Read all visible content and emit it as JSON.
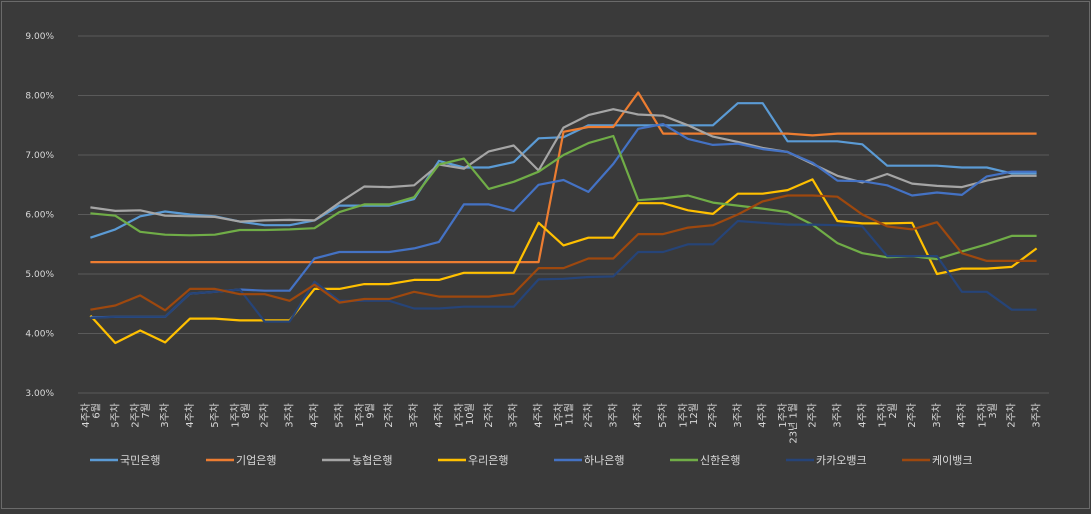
{
  "chart_data": {
    "type": "line",
    "title": "",
    "xlabel": "",
    "ylabel": "",
    "ylim": [
      3.0,
      9.0
    ],
    "y_ticks": [
      "3.00%",
      "4.00%",
      "5.00%",
      "6.00%",
      "7.00%",
      "8.00%",
      "9.00%"
    ],
    "grid": true,
    "legend_position": "bottom",
    "x": [
      "6월 4주차",
      "5주차",
      "7월 2주차",
      "3주차",
      "4주차",
      "5주차",
      "8월 1주차",
      "2주차",
      "3주차",
      "4주차",
      "5주차",
      "9월 1주차",
      "2주차",
      "3주차",
      "4주차",
      "10월 1주차",
      "2주차",
      "3주차",
      "4주차",
      "11월 1주차",
      "2주차",
      "3주차",
      "4주차",
      "5주차",
      "12월 1주차",
      "2주차",
      "3주차",
      "4주차",
      "23년 1월 1주차",
      "2주차",
      "3주차",
      "4주차",
      "2월 1주차",
      "2주차",
      "3주차",
      "4주차",
      "3월 1주차",
      "2주차",
      "3주차"
    ],
    "series": [
      {
        "name": "국민은행",
        "color": "#5b9bd5",
        "values": [
          5.61,
          5.75,
          5.97,
          6.05,
          6.0,
          5.97,
          5.88,
          5.82,
          5.82,
          5.9,
          6.15,
          6.15,
          6.15,
          6.26,
          6.9,
          6.79,
          6.79,
          6.88,
          7.28,
          7.3,
          7.5,
          7.5,
          7.5,
          7.5,
          7.5,
          7.5,
          7.87,
          7.87,
          7.23,
          7.23,
          7.23,
          7.18,
          6.82,
          6.82,
          6.82,
          6.79,
          6.79,
          6.69,
          6.69
        ]
      },
      {
        "name": "기업은행",
        "color": "#ed7d31",
        "values": [
          5.2,
          5.2,
          5.2,
          5.2,
          5.2,
          5.2,
          5.2,
          5.2,
          5.2,
          5.2,
          5.2,
          5.2,
          5.2,
          5.2,
          5.2,
          5.2,
          5.2,
          5.2,
          5.2,
          7.39,
          7.47,
          7.47,
          8.05,
          7.36,
          7.36,
          7.36,
          7.36,
          7.36,
          7.36,
          7.33,
          7.36,
          7.36,
          7.36,
          7.36,
          7.36,
          7.36,
          7.36,
          7.36,
          7.36
        ]
      },
      {
        "name": "농협은행",
        "color": "#a5a5a5",
        "values": [
          6.12,
          6.06,
          6.07,
          5.98,
          5.97,
          5.96,
          5.88,
          5.9,
          5.91,
          5.9,
          6.2,
          6.47,
          6.46,
          6.49,
          6.84,
          6.77,
          7.06,
          7.16,
          6.74,
          7.46,
          7.67,
          7.77,
          7.68,
          7.66,
          7.5,
          7.31,
          7.22,
          7.12,
          7.05,
          6.85,
          6.65,
          6.54,
          6.68,
          6.52,
          6.48,
          6.46,
          6.57,
          6.65,
          6.65
        ]
      },
      {
        "name": "우리은행",
        "color": "#ffc000",
        "values": [
          4.3,
          3.84,
          4.05,
          3.85,
          4.25,
          4.25,
          4.22,
          4.22,
          4.22,
          4.75,
          4.75,
          4.83,
          4.83,
          4.9,
          4.9,
          5.02,
          5.02,
          5.02,
          5.86,
          5.48,
          5.61,
          5.61,
          6.19,
          6.19,
          6.07,
          6.01,
          6.35,
          6.35,
          6.41,
          6.59,
          5.89,
          5.85,
          5.85,
          5.86,
          5.0,
          5.09,
          5.09,
          5.12,
          5.43
        ]
      },
      {
        "name": "하나은행",
        "color": "#4472c4",
        "values": [
          4.27,
          4.28,
          4.28,
          4.28,
          4.67,
          4.7,
          4.74,
          4.72,
          4.72,
          5.26,
          5.37,
          5.37,
          5.37,
          5.43,
          5.54,
          6.17,
          6.17,
          6.06,
          6.5,
          6.58,
          6.38,
          6.85,
          7.44,
          7.52,
          7.27,
          7.17,
          7.19,
          7.1,
          7.05,
          6.87,
          6.57,
          6.56,
          6.49,
          6.32,
          6.37,
          6.33,
          6.64,
          6.72,
          6.72
        ]
      },
      {
        "name": "신한은행",
        "color": "#70ad47",
        "values": [
          6.02,
          5.98,
          5.71,
          5.66,
          5.65,
          5.66,
          5.74,
          5.74,
          5.75,
          5.77,
          6.04,
          6.17,
          6.17,
          6.29,
          6.84,
          6.94,
          6.43,
          6.55,
          6.72,
          7.0,
          7.2,
          7.32,
          6.24,
          6.27,
          6.32,
          6.2,
          6.15,
          6.1,
          6.04,
          5.83,
          5.52,
          5.35,
          5.28,
          5.3,
          5.25,
          5.38,
          5.5,
          5.64,
          5.64
        ]
      },
      {
        "name": "카카오뱅크",
        "color": "#264478",
        "values": [
          4.26,
          4.28,
          4.28,
          4.28,
          4.67,
          4.7,
          4.74,
          4.2,
          4.2,
          4.87,
          4.55,
          4.55,
          4.55,
          4.42,
          4.42,
          4.45,
          4.45,
          4.45,
          4.91,
          4.92,
          4.95,
          4.96,
          5.37,
          5.37,
          5.5,
          5.5,
          5.89,
          5.86,
          5.83,
          5.83,
          5.82,
          5.8,
          5.3,
          5.3,
          5.3,
          4.7,
          4.7,
          4.4,
          4.4
        ]
      },
      {
        "name": "케이뱅크",
        "color": "#9e480e",
        "values": [
          4.4,
          4.47,
          4.64,
          4.39,
          4.75,
          4.75,
          4.66,
          4.66,
          4.55,
          4.82,
          4.52,
          4.58,
          4.58,
          4.7,
          4.62,
          4.62,
          4.62,
          4.67,
          5.1,
          5.1,
          5.26,
          5.26,
          5.67,
          5.67,
          5.78,
          5.82,
          6.0,
          6.22,
          6.32,
          6.32,
          6.3,
          6.0,
          5.8,
          5.75,
          5.87,
          5.35,
          5.22,
          5.22,
          5.22
        ]
      }
    ]
  }
}
